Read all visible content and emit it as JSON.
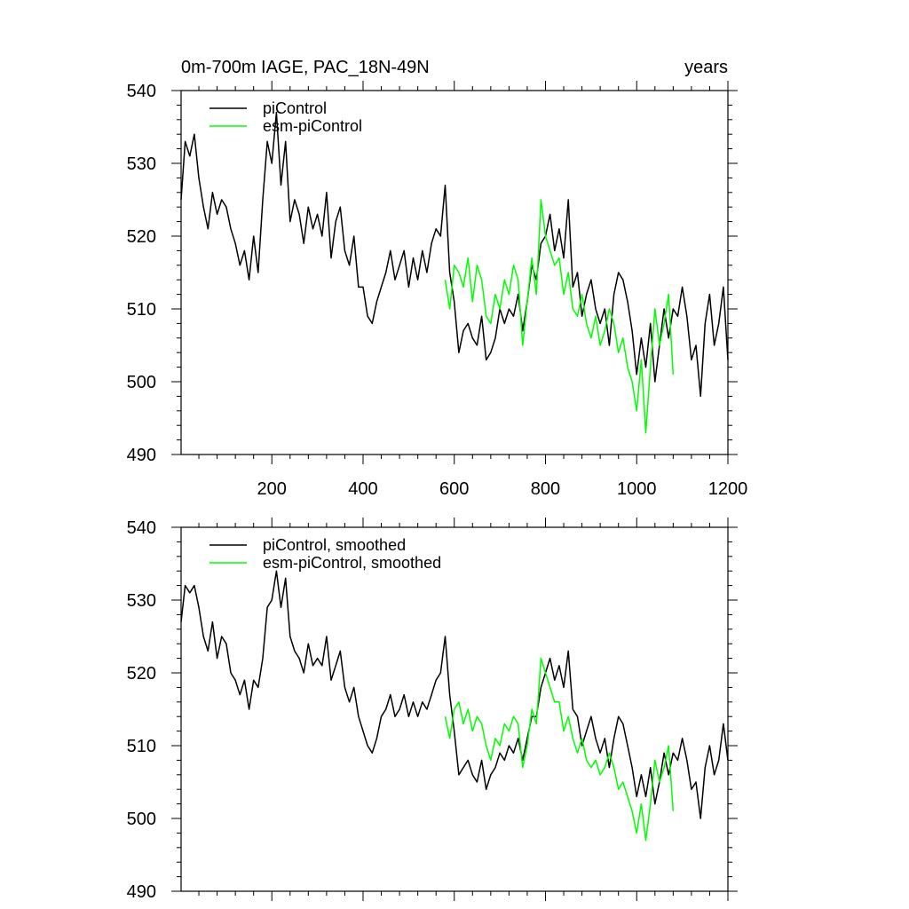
{
  "chart_data": [
    {
      "type": "line",
      "title_left": "0m-700m IAGE, PAC_18N-49N",
      "title_right": "years",
      "xlim": [
        1,
        1200
      ],
      "ylim": [
        490,
        540
      ],
      "y_ticks": [
        490,
        500,
        510,
        520,
        530,
        540
      ],
      "x_tick_labels": [
        200,
        400,
        600,
        800,
        1000,
        1200
      ],
      "x_label_years": [
        200,
        400,
        600,
        800,
        1000,
        1200
      ],
      "series": [
        {
          "name": "piControl",
          "color": "#000000",
          "x": [
            1,
            10,
            20,
            30,
            40,
            50,
            60,
            70,
            80,
            90,
            100,
            110,
            120,
            130,
            140,
            150,
            160,
            170,
            180,
            190,
            200,
            210,
            220,
            230,
            240,
            250,
            260,
            270,
            280,
            290,
            300,
            310,
            320,
            330,
            340,
            350,
            360,
            370,
            380,
            390,
            400,
            410,
            420,
            430,
            440,
            450,
            460,
            470,
            480,
            490,
            500,
            510,
            520,
            530,
            540,
            550,
            560,
            570,
            580,
            590,
            600,
            610,
            620,
            630,
            640,
            650,
            660,
            670,
            680,
            690,
            700,
            710,
            720,
            730,
            740,
            750,
            760,
            770,
            780,
            790,
            800,
            810,
            820,
            830,
            840,
            850,
            860,
            870,
            880,
            890,
            900,
            910,
            920,
            930,
            940,
            950,
            960,
            970,
            980,
            990,
            1000,
            1010,
            1020,
            1030,
            1040,
            1050,
            1060,
            1070,
            1080,
            1090,
            1100,
            1110,
            1120,
            1130,
            1140,
            1150,
            1160,
            1170,
            1180,
            1190,
            1200
          ],
          "values": [
            525,
            533,
            531,
            534,
            528,
            524,
            521,
            526,
            523,
            525,
            524,
            521,
            519,
            516,
            518,
            514,
            520,
            515,
            525,
            533,
            530,
            537,
            527,
            533,
            522,
            525,
            523,
            519,
            524,
            521,
            523,
            520,
            526,
            517,
            522,
            524,
            518,
            516,
            520,
            513,
            513,
            509,
            508,
            511,
            513,
            515,
            518,
            514,
            516,
            518,
            513,
            517,
            514,
            518,
            515,
            519,
            521,
            520,
            527,
            515,
            511,
            504,
            507,
            508,
            506,
            505,
            509,
            503,
            504,
            506,
            510,
            508,
            510,
            509,
            512,
            507,
            511,
            516,
            514,
            519,
            520,
            523,
            518,
            521,
            517,
            525,
            513,
            515,
            509,
            512,
            514,
            510,
            508,
            510,
            505,
            512,
            515,
            514,
            511,
            507,
            501,
            506,
            502,
            508,
            500,
            505,
            510,
            506,
            510,
            509,
            513,
            509,
            503,
            505,
            498,
            508,
            512,
            505,
            508,
            513,
            503
          ]
        },
        {
          "name": "esm-piControl",
          "color": "#00ff00",
          "x": [
            580,
            590,
            600,
            610,
            620,
            630,
            640,
            650,
            660,
            670,
            680,
            690,
            700,
            710,
            720,
            730,
            740,
            750,
            760,
            770,
            780,
            790,
            800,
            810,
            820,
            830,
            840,
            850,
            860,
            870,
            880,
            890,
            900,
            910,
            920,
            930,
            940,
            950,
            960,
            970,
            980,
            990,
            1000,
            1010,
            1020,
            1030,
            1040,
            1050,
            1060,
            1070,
            1080
          ],
          "values": [
            514,
            510,
            516,
            515,
            513,
            517,
            511,
            516,
            514,
            509,
            508,
            512,
            510,
            514,
            512,
            516,
            514,
            505,
            511,
            517,
            512,
            525,
            520,
            518,
            516,
            517,
            512,
            515,
            510,
            509,
            512,
            508,
            506,
            509,
            505,
            507,
            510,
            508,
            504,
            506,
            502,
            500,
            496,
            503,
            493,
            502,
            510,
            505,
            508,
            512,
            501
          ]
        }
      ]
    },
    {
      "type": "line",
      "xlim": [
        1,
        1200
      ],
      "ylim": [
        490,
        540
      ],
      "y_ticks": [
        490,
        500,
        510,
        520,
        530,
        540
      ],
      "series": [
        {
          "name": "piControl, smoothed",
          "color": "#000000",
          "x": [
            1,
            10,
            20,
            30,
            40,
            50,
            60,
            70,
            80,
            90,
            100,
            110,
            120,
            130,
            140,
            150,
            160,
            170,
            180,
            190,
            200,
            210,
            220,
            230,
            240,
            250,
            260,
            270,
            280,
            290,
            300,
            310,
            320,
            330,
            340,
            350,
            360,
            370,
            380,
            390,
            400,
            410,
            420,
            430,
            440,
            450,
            460,
            470,
            480,
            490,
            500,
            510,
            520,
            530,
            540,
            550,
            560,
            570,
            580,
            590,
            600,
            610,
            620,
            630,
            640,
            650,
            660,
            670,
            680,
            690,
            700,
            710,
            720,
            730,
            740,
            750,
            760,
            770,
            780,
            790,
            800,
            810,
            820,
            830,
            840,
            850,
            860,
            870,
            880,
            890,
            900,
            910,
            920,
            930,
            940,
            950,
            960,
            970,
            980,
            990,
            1000,
            1010,
            1020,
            1030,
            1040,
            1050,
            1060,
            1070,
            1080,
            1090,
            1100,
            1110,
            1120,
            1130,
            1140,
            1150,
            1160,
            1170,
            1180,
            1190,
            1200
          ],
          "values": [
            527,
            532,
            531,
            532,
            529,
            525,
            523,
            527,
            522,
            525,
            524,
            520,
            519,
            517,
            519,
            515,
            519,
            518,
            522,
            529,
            530,
            534,
            529,
            533,
            525,
            523,
            522,
            520,
            524,
            521,
            522,
            521,
            525,
            519,
            521,
            523,
            518,
            516,
            518,
            514,
            512,
            510,
            509,
            511,
            514,
            515,
            517,
            514,
            515,
            517,
            514,
            516,
            514,
            516,
            515,
            517,
            519,
            520,
            525,
            517,
            512,
            506,
            507,
            508,
            506,
            505,
            508,
            504,
            506,
            507,
            509,
            508,
            510,
            509,
            511,
            508,
            511,
            514,
            514,
            518,
            520,
            522,
            519,
            521,
            518,
            523,
            515,
            514,
            510,
            512,
            514,
            511,
            509,
            511,
            507,
            511,
            514,
            513,
            510,
            507,
            503,
            506,
            503,
            507,
            502,
            505,
            509,
            506,
            509,
            508,
            511,
            508,
            504,
            505,
            500,
            507,
            510,
            506,
            508,
            513,
            508
          ]
        },
        {
          "name": "esm-piControl, smoothed",
          "color": "#00ff00",
          "x": [
            580,
            590,
            600,
            610,
            620,
            630,
            640,
            650,
            660,
            670,
            680,
            690,
            700,
            710,
            720,
            730,
            740,
            750,
            760,
            770,
            780,
            790,
            800,
            810,
            820,
            830,
            840,
            850,
            860,
            870,
            880,
            890,
            900,
            910,
            920,
            930,
            940,
            950,
            960,
            970,
            980,
            990,
            1000,
            1010,
            1020,
            1030,
            1040,
            1050,
            1060,
            1070,
            1080
          ],
          "values": [
            514,
            511,
            515,
            516,
            513,
            515,
            512,
            514,
            513,
            510,
            508,
            511,
            510,
            513,
            512,
            514,
            513,
            507,
            510,
            515,
            513,
            522,
            520,
            518,
            516,
            516,
            512,
            514,
            511,
            509,
            511,
            508,
            507,
            508,
            506,
            507,
            509,
            507,
            504,
            505,
            503,
            501,
            498,
            502,
            497,
            502,
            508,
            505,
            507,
            510,
            501
          ]
        }
      ]
    }
  ]
}
